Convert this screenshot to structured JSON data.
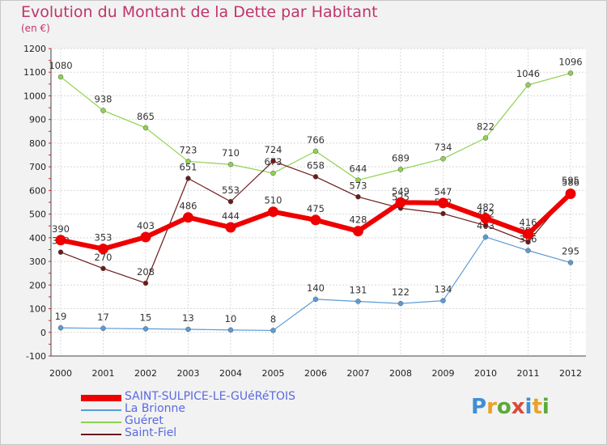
{
  "title": "Evolution du Montant de la Dette par Habitant",
  "subtitle": "(en €)",
  "logo": "Proxiti",
  "chart_data": {
    "type": "line",
    "title": "Evolution du Montant de la Dette par Habitant",
    "ylabel": "(en €)",
    "ylim": [
      -100,
      1200
    ],
    "yticks": [
      -100,
      0,
      100,
      200,
      300,
      400,
      500,
      600,
      700,
      800,
      900,
      1000,
      1100,
      1200
    ],
    "x": [
      "2000",
      "2001",
      "2002",
      "2003",
      "2004",
      "2005",
      "2006",
      "2007",
      "2008",
      "2009",
      "2010",
      "2011",
      "2012"
    ],
    "grid": true,
    "series": [
      {
        "name": "La Brionne",
        "color": "#5b9bd5",
        "width": 1.2,
        "values": [
          19,
          17,
          15,
          13,
          10,
          8,
          140,
          131,
          122,
          134,
          403,
          346,
          295
        ]
      },
      {
        "name": "Guéret",
        "color": "#8fd14f",
        "width": 1.2,
        "values": [
          1080,
          938,
          865,
          723,
          710,
          673,
          766,
          644,
          689,
          734,
          822,
          1046,
          1096
        ]
      },
      {
        "name": "Saint-Fiel",
        "color": "#6b1a1a",
        "width": 1.2,
        "values": [
          339,
          270,
          208,
          651,
          553,
          724,
          658,
          573,
          525,
          502,
          452,
          382,
          595
        ]
      },
      {
        "name": "SAINT-SULPICE-LE-GUéRéTOIS",
        "color": "#ee0000",
        "width": 6,
        "values": [
          390,
          353,
          403,
          486,
          444,
          510,
          475,
          428,
          549,
          547,
          482,
          416,
          586
        ]
      }
    ],
    "legend_order": [
      3,
      0,
      1,
      2
    ]
  }
}
